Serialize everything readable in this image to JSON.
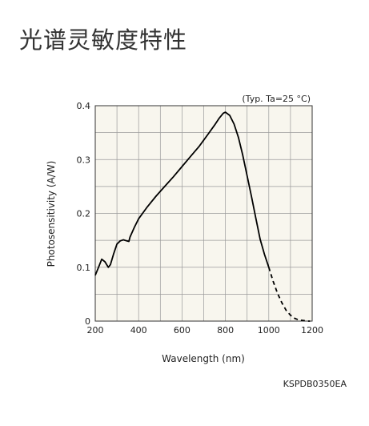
{
  "page": {
    "title": "光谱灵敏度特性",
    "figure_code": "KSPDB0350EA"
  },
  "chart_data": {
    "type": "line",
    "condition_note": "(Typ. Ta=25 °C)",
    "xlabel": "Wavelength (nm)",
    "ylabel": "Photosensitivity (A/W)",
    "xlim": [
      200,
      1200
    ],
    "ylim": [
      0,
      0.4
    ],
    "x_ticks": [
      200,
      400,
      600,
      800,
      1000,
      1200
    ],
    "y_ticks": [
      0,
      0.1,
      0.2,
      0.3,
      0.4
    ],
    "y_tick_labels": [
      "0",
      "0.1",
      "0.2",
      "0.3",
      "0.4"
    ],
    "grid": true,
    "plot_background": "#f8f6ee",
    "series": [
      {
        "style": "solid",
        "color": "#000000",
        "x": [
          200,
          215,
          230,
          245,
          260,
          270,
          285,
          300,
          315,
          330,
          345,
          355,
          360,
          380,
          400,
          440,
          480,
          520,
          560,
          600,
          640,
          680,
          720,
          750,
          770,
          790,
          800,
          820,
          840,
          860,
          880,
          900,
          920,
          940,
          960,
          980,
          1000
        ],
        "y": [
          0.085,
          0.1,
          0.115,
          0.11,
          0.1,
          0.105,
          0.125,
          0.143,
          0.149,
          0.151,
          0.149,
          0.148,
          0.156,
          0.174,
          0.19,
          0.212,
          0.232,
          0.25,
          0.268,
          0.287,
          0.306,
          0.325,
          0.347,
          0.364,
          0.376,
          0.386,
          0.388,
          0.382,
          0.366,
          0.341,
          0.308,
          0.27,
          0.232,
          0.192,
          0.152,
          0.124,
          0.1
        ]
      },
      {
        "style": "dashed",
        "color": "#000000",
        "x": [
          1000,
          1020,
          1040,
          1060,
          1080,
          1100,
          1120,
          1140,
          1160,
          1180,
          1190
        ],
        "y": [
          0.1,
          0.074,
          0.052,
          0.034,
          0.02,
          0.011,
          0.005,
          0.002,
          0.001,
          0.0,
          0.0
        ]
      }
    ]
  }
}
